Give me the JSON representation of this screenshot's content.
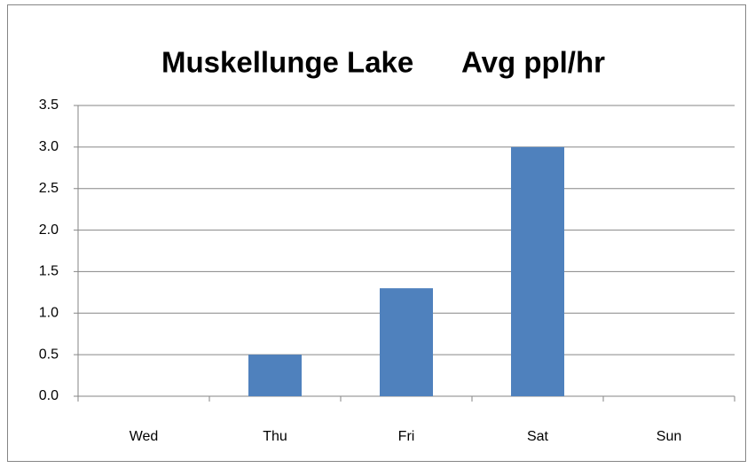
{
  "chart_data": {
    "type": "bar",
    "title": "Muskellunge Lake      Avg ppl/hr",
    "categories": [
      "Wed",
      "Thu",
      "Fri",
      "Sat",
      "Sun"
    ],
    "values": [
      0,
      0.5,
      1.3,
      3.0,
      0
    ],
    "color": "#4f81bd",
    "ylim": [
      0,
      3.5
    ],
    "yticks": [
      {
        "value": 0,
        "label": "0.0"
      },
      0.5,
      {
        "value": 1,
        "label": "1.0"
      },
      1.5,
      {
        "value": 2,
        "label": "2.0"
      },
      2.5,
      {
        "value": 3,
        "label": "3.0"
      },
      3.5
    ],
    "grid": true
  }
}
